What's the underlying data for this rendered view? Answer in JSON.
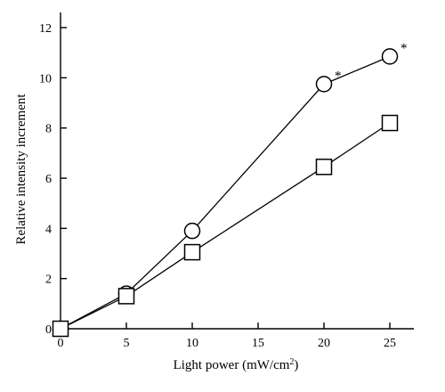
{
  "chart_data": {
    "type": "line",
    "xlabel": "Light power (mW/cm",
    "xlabel_superscript": "2",
    "xlabel_suffix": ")",
    "ylabel": "Relative intensity increment",
    "xlim": [
      0,
      25
    ],
    "ylim": [
      0,
      12
    ],
    "x_ticks": [
      0,
      5,
      10,
      15,
      20,
      25
    ],
    "y_ticks": [
      0,
      2,
      4,
      6,
      8,
      10,
      12
    ],
    "grid": false,
    "legend": "none",
    "series": [
      {
        "marker": "circle",
        "x": [
          0,
          5,
          10,
          20,
          25
        ],
        "y": [
          0,
          1.4,
          3.9,
          9.75,
          10.85
        ],
        "annotations": [
          "",
          "",
          "",
          "*",
          "*"
        ]
      },
      {
        "marker": "square",
        "x": [
          0,
          5,
          10,
          20,
          25
        ],
        "y": [
          0,
          1.3,
          3.05,
          6.45,
          8.2
        ],
        "annotations": [
          "",
          "",
          "",
          "",
          ""
        ]
      }
    ]
  }
}
